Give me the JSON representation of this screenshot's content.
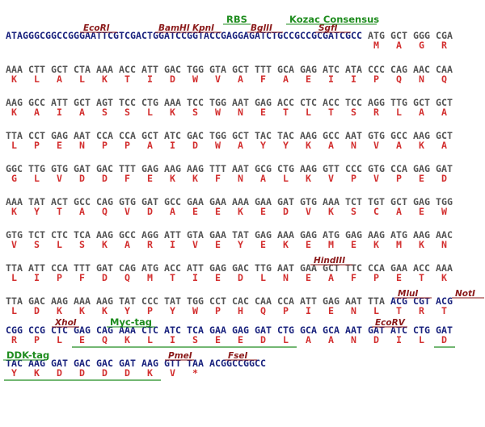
{
  "sequence": {
    "leader": "ATAGGGCGGCCGGGAATTCGTCGACTGGATCCGGTACCGAGGAGATCTGCCGCCGCGATCGCC",
    "trailer": "ACGGCCGGCC",
    "rows": [
      {
        "codons": [
          "ATG",
          "GCT",
          "GGG",
          "CGA"
        ],
        "amino_acids": [
          "M",
          "A",
          "G",
          "R"
        ]
      },
      {
        "codons": [
          "AAA",
          "CTT",
          "GCT",
          "CTA",
          "AAA",
          "ACC",
          "ATT",
          "GAC",
          "TGG",
          "GTA",
          "GCT",
          "TTT",
          "GCA",
          "GAG",
          "ATC",
          "ATA",
          "CCC",
          "CAG",
          "AAC",
          "CAA"
        ],
        "amino_acids": [
          "K",
          "L",
          "A",
          "L",
          "K",
          "T",
          "I",
          "D",
          "W",
          "V",
          "A",
          "F",
          "A",
          "E",
          "I",
          "I",
          "P",
          "Q",
          "N",
          "Q"
        ]
      },
      {
        "codons": [
          "AAG",
          "GCC",
          "ATT",
          "GCT",
          "AGT",
          "TCC",
          "CTG",
          "AAA",
          "TCC",
          "TGG",
          "AAT",
          "GAG",
          "ACC",
          "CTC",
          "ACC",
          "TCC",
          "AGG",
          "TTG",
          "GCT",
          "GCT"
        ],
        "amino_acids": [
          "K",
          "A",
          "I",
          "A",
          "S",
          "S",
          "L",
          "K",
          "S",
          "W",
          "N",
          "E",
          "T",
          "L",
          "T",
          "S",
          "R",
          "L",
          "A",
          "A"
        ]
      },
      {
        "codons": [
          "TTA",
          "CCT",
          "GAG",
          "AAT",
          "CCA",
          "CCA",
          "GCT",
          "ATC",
          "GAC",
          "TGG",
          "GCT",
          "TAC",
          "TAC",
          "AAG",
          "GCC",
          "AAT",
          "GTG",
          "GCC",
          "AAG",
          "GCT"
        ],
        "amino_acids": [
          "L",
          "P",
          "E",
          "N",
          "P",
          "P",
          "A",
          "I",
          "D",
          "W",
          "A",
          "Y",
          "Y",
          "K",
          "A",
          "N",
          "V",
          "A",
          "K",
          "A"
        ]
      },
      {
        "codons": [
          "GGC",
          "TTG",
          "GTG",
          "GAT",
          "GAC",
          "TTT",
          "GAG",
          "AAG",
          "AAG",
          "TTT",
          "AAT",
          "GCG",
          "CTG",
          "AAG",
          "GTT",
          "CCC",
          "GTG",
          "CCA",
          "GAG",
          "GAT"
        ],
        "amino_acids": [
          "G",
          "L",
          "V",
          "D",
          "D",
          "F",
          "E",
          "K",
          "K",
          "F",
          "N",
          "A",
          "L",
          "K",
          "V",
          "P",
          "V",
          "P",
          "E",
          "D"
        ]
      },
      {
        "codons": [
          "AAA",
          "TAT",
          "ACT",
          "GCC",
          "CAG",
          "GTG",
          "GAT",
          "GCC",
          "GAA",
          "GAA",
          "AAA",
          "GAA",
          "GAT",
          "GTG",
          "AAA",
          "TCT",
          "TGT",
          "GCT",
          "GAG",
          "TGG"
        ],
        "amino_acids": [
          "K",
          "Y",
          "T",
          "A",
          "Q",
          "V",
          "D",
          "A",
          "E",
          "E",
          "K",
          "E",
          "D",
          "V",
          "K",
          "S",
          "C",
          "A",
          "E",
          "W"
        ]
      },
      {
        "codons": [
          "GTG",
          "TCT",
          "CTC",
          "TCA",
          "AAG",
          "GCC",
          "AGG",
          "ATT",
          "GTA",
          "GAA",
          "TAT",
          "GAG",
          "AAA",
          "GAG",
          "ATG",
          "GAG",
          "AAG",
          "ATG",
          "AAG",
          "AAC"
        ],
        "amino_acids": [
          "V",
          "S",
          "L",
          "S",
          "K",
          "A",
          "R",
          "I",
          "V",
          "E",
          "Y",
          "E",
          "K",
          "E",
          "M",
          "E",
          "K",
          "M",
          "K",
          "N"
        ]
      },
      {
        "codons": [
          "TTA",
          "ATT",
          "CCA",
          "TTT",
          "GAT",
          "CAG",
          "ATG",
          "ACC",
          "ATT",
          "GAG",
          "GAC",
          "TTG",
          "AAT",
          "GAA",
          "GCT",
          "TTC",
          "CCA",
          "GAA",
          "ACC",
          "AAA"
        ],
        "amino_acids": [
          "L",
          "I",
          "P",
          "F",
          "D",
          "Q",
          "M",
          "T",
          "I",
          "E",
          "D",
          "L",
          "N",
          "E",
          "A",
          "F",
          "P",
          "E",
          "T",
          "K"
        ]
      },
      {
        "codons": [
          "TTA",
          "GAC",
          "AAG",
          "AAA",
          "AAG",
          "TAT",
          "CCC",
          "TAT",
          "TGG",
          "CCT",
          "CAC",
          "CAA",
          "CCA",
          "ATT",
          "GAG",
          "AAT",
          "TTA",
          "ACG",
          "CGT",
          "ACG"
        ],
        "amino_acids": [
          "L",
          "D",
          "K",
          "K",
          "K",
          "Y",
          "P",
          "Y",
          "W",
          "P",
          "H",
          "Q",
          "P",
          "I",
          "E",
          "N",
          "L",
          "T",
          "R",
          "T"
        ]
      },
      {
        "codons": [
          "CGG",
          "CCG",
          "CTC",
          "GAG",
          "CAG",
          "AAA",
          "CTC",
          "ATC",
          "TCA",
          "GAA",
          "GAG",
          "GAT",
          "CTG",
          "GCA",
          "GCA",
          "AAT",
          "GAT",
          "ATC",
          "CTG",
          "GAT"
        ],
        "amino_acids": [
          "R",
          "P",
          "L",
          "E",
          "Q",
          "K",
          "L",
          "I",
          "S",
          "E",
          "E",
          "D",
          "L",
          "A",
          "A",
          "N",
          "D",
          "I",
          "L",
          "D"
        ]
      },
      {
        "codons": [
          "TAC",
          "AAG",
          "GAT",
          "GAC",
          "GAC",
          "GAT",
          "AAG",
          "GTT",
          "TAA"
        ],
        "amino_acids": [
          "Y",
          "K",
          "D",
          "D",
          "D",
          "D",
          "K",
          "V",
          "*"
        ]
      }
    ],
    "annotations": [
      {
        "row": 0,
        "label": "EcoRI",
        "kind": "site"
      },
      {
        "row": 0,
        "label": "BamHI",
        "kind": "site"
      },
      {
        "row": 0,
        "label": "KpnI",
        "kind": "site"
      },
      {
        "row": 0,
        "label": "BglII",
        "kind": "site"
      },
      {
        "row": 0,
        "label": "SgfI",
        "kind": "site"
      },
      {
        "row": 0,
        "label": "RBS",
        "kind": "feature"
      },
      {
        "row": 0,
        "label": "Kozac Consensus",
        "kind": "feature"
      },
      {
        "row": 7,
        "label": "HindIII",
        "kind": "site"
      },
      {
        "row": 8,
        "label": "MluI",
        "kind": "site"
      },
      {
        "row": 8,
        "label": "NotI",
        "kind": "site"
      },
      {
        "row": 9,
        "label": "XhoI",
        "kind": "site"
      },
      {
        "row": 9,
        "label": "Myc-tag",
        "kind": "feature"
      },
      {
        "row": 9,
        "label": "EcoRV",
        "kind": "site"
      },
      {
        "row": 10,
        "label": "DDK-tag",
        "kind": "feature"
      },
      {
        "row": 10,
        "label": "PmeI",
        "kind": "site"
      },
      {
        "row": 10,
        "label": "FseI",
        "kind": "site"
      }
    ]
  }
}
